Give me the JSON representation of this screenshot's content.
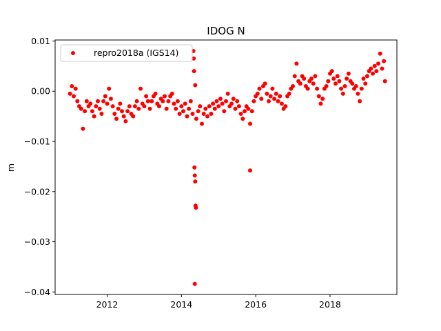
{
  "chart_data": {
    "type": "scatter",
    "title": "IDOG N",
    "xlabel": "",
    "ylabel": "m",
    "xlim": [
      2010.6,
      2019.8
    ],
    "ylim": [
      -0.0405,
      0.0102
    ],
    "xticks": [
      2012,
      2014,
      2016,
      2018
    ],
    "xtick_labels": [
      "2012",
      "2014",
      "2016",
      "2018"
    ],
    "yticks": [
      0.01,
      0.0,
      -0.01,
      -0.02,
      -0.03,
      -0.04
    ],
    "ytick_labels": [
      "0.01",
      "0.00",
      "−0.01",
      "−0.02",
      "−0.03",
      "−0.04"
    ],
    "legend": {
      "position": "top-left"
    },
    "series": [
      {
        "name": "repro2018a (IGS14)",
        "color": "#ff0000",
        "marker": "circle",
        "points": [
          [
            2011.0,
            -0.0005
          ],
          [
            2011.05,
            0.001
          ],
          [
            2011.1,
            -0.001
          ],
          [
            2011.15,
            0.0005
          ],
          [
            2011.2,
            -0.002
          ],
          [
            2011.25,
            -0.003
          ],
          [
            2011.3,
            -0.0035
          ],
          [
            2011.35,
            -0.0075
          ],
          [
            2011.4,
            -0.004
          ],
          [
            2011.45,
            -0.002
          ],
          [
            2011.5,
            -0.003
          ],
          [
            2011.55,
            -0.0025
          ],
          [
            2011.6,
            -0.004
          ],
          [
            2011.65,
            -0.005
          ],
          [
            2011.7,
            -0.003
          ],
          [
            2011.75,
            -0.002
          ],
          [
            2011.8,
            -0.0035
          ],
          [
            2011.85,
            -0.0045
          ],
          [
            2011.9,
            -0.002
          ],
          [
            2011.95,
            -0.001
          ],
          [
            2012.0,
            -0.0025
          ],
          [
            2012.05,
            0.0005
          ],
          [
            2012.1,
            -0.0015
          ],
          [
            2012.15,
            -0.003
          ],
          [
            2012.2,
            -0.0045
          ],
          [
            2012.25,
            -0.0055
          ],
          [
            2012.3,
            -0.0035
          ],
          [
            2012.35,
            -0.0025
          ],
          [
            2012.4,
            -0.004
          ],
          [
            2012.45,
            -0.005
          ],
          [
            2012.5,
            -0.006
          ],
          [
            2012.55,
            -0.004
          ],
          [
            2012.6,
            -0.003
          ],
          [
            2012.65,
            -0.0045
          ],
          [
            2012.7,
            -0.005
          ],
          [
            2012.75,
            -0.003
          ],
          [
            2012.8,
            -0.002
          ],
          [
            2012.85,
            -0.0035
          ],
          [
            2012.9,
            0.0005
          ],
          [
            2012.95,
            -0.0025
          ],
          [
            2013.0,
            -0.003
          ],
          [
            2013.05,
            -0.001
          ],
          [
            2013.1,
            -0.002
          ],
          [
            2013.15,
            -0.0035
          ],
          [
            2013.2,
            -0.002
          ],
          [
            2013.25,
            -0.001
          ],
          [
            2013.3,
            -0.0005
          ],
          [
            2013.35,
            -0.0025
          ],
          [
            2013.4,
            -0.003
          ],
          [
            2013.45,
            -0.0015
          ],
          [
            2013.5,
            -0.002
          ],
          [
            2013.55,
            -0.001
          ],
          [
            2013.6,
            -0.0035
          ],
          [
            2013.65,
            -0.002
          ],
          [
            2013.7,
            -0.001
          ],
          [
            2013.75,
            -0.0005
          ],
          [
            2013.8,
            -0.0025
          ],
          [
            2013.85,
            -0.0035
          ],
          [
            2013.9,
            -0.002
          ],
          [
            2013.95,
            -0.0045
          ],
          [
            2014.0,
            -0.003
          ],
          [
            2014.05,
            -0.004
          ],
          [
            2014.1,
            -0.0025
          ],
          [
            2014.15,
            -0.005
          ],
          [
            2014.2,
            -0.0035
          ],
          [
            2014.25,
            -0.002
          ],
          [
            2014.3,
            -0.0045
          ],
          [
            2014.32,
            0.008
          ],
          [
            2014.33,
            0.0065
          ],
          [
            2014.34,
            0.004
          ],
          [
            2014.35,
            -0.0152
          ],
          [
            2014.36,
            -0.0168
          ],
          [
            2014.37,
            -0.018
          ],
          [
            2014.38,
            -0.0228
          ],
          [
            2014.39,
            -0.0232
          ],
          [
            2014.36,
            -0.0384
          ],
          [
            2014.37,
            0.0012
          ],
          [
            2014.4,
            -0.0055
          ],
          [
            2014.45,
            -0.004
          ],
          [
            2014.5,
            -0.003
          ],
          [
            2014.55,
            -0.0065
          ],
          [
            2014.6,
            -0.0045
          ],
          [
            2014.65,
            -0.0035
          ],
          [
            2014.7,
            -0.005
          ],
          [
            2014.75,
            -0.003
          ],
          [
            2014.8,
            -0.0045
          ],
          [
            2014.85,
            -0.0025
          ],
          [
            2014.9,
            -0.0035
          ],
          [
            2014.95,
            -0.002
          ],
          [
            2015.0,
            -0.003
          ],
          [
            2015.05,
            -0.0015
          ],
          [
            2015.1,
            -0.0025
          ],
          [
            2015.15,
            -0.004
          ],
          [
            2015.2,
            -0.002
          ],
          [
            2015.25,
            -0.0005
          ],
          [
            2015.3,
            -0.003
          ],
          [
            2015.35,
            -0.0025
          ],
          [
            2015.4,
            -0.0015
          ],
          [
            2015.45,
            -0.0035
          ],
          [
            2015.5,
            -0.002
          ],
          [
            2015.55,
            -0.003
          ],
          [
            2015.6,
            -0.0045
          ],
          [
            2015.65,
            -0.0055
          ],
          [
            2015.7,
            -0.004
          ],
          [
            2015.75,
            -0.003
          ],
          [
            2015.8,
            -0.0035
          ],
          [
            2015.85,
            -0.0158
          ],
          [
            2015.85,
            -0.0065
          ],
          [
            2015.9,
            -0.004
          ],
          [
            2015.95,
            -0.002
          ],
          [
            2016.0,
            -0.001
          ],
          [
            2016.05,
            -0.0005
          ],
          [
            2016.1,
            0.0005
          ],
          [
            2016.15,
            -0.0015
          ],
          [
            2016.2,
            0.001
          ],
          [
            2016.25,
            0.0015
          ],
          [
            2016.3,
            -0.0005
          ],
          [
            2016.35,
            -0.002
          ],
          [
            2016.4,
            -0.001
          ],
          [
            2016.45,
            0.0005
          ],
          [
            2016.5,
            -0.0015
          ],
          [
            2016.55,
            -0.0005
          ],
          [
            2016.6,
            -0.002
          ],
          [
            2016.65,
            -0.001
          ],
          [
            2016.7,
            -0.0025
          ],
          [
            2016.75,
            -0.0035
          ],
          [
            2016.8,
            -0.003
          ],
          [
            2016.85,
            -0.001
          ],
          [
            2016.9,
            -0.0005
          ],
          [
            2016.95,
            0.0005
          ],
          [
            2017.0,
            0.001
          ],
          [
            2017.05,
            0.003
          ],
          [
            2017.1,
            0.0055
          ],
          [
            2017.15,
            0.002
          ],
          [
            2017.2,
            0.0015
          ],
          [
            2017.25,
            0.003
          ],
          [
            2017.3,
            0.0025
          ],
          [
            2017.35,
            0.001
          ],
          [
            2017.4,
            0.0005
          ],
          [
            2017.45,
            0.002
          ],
          [
            2017.5,
            0.0025
          ],
          [
            2017.55,
            0.0015
          ],
          [
            2017.6,
            0.003
          ],
          [
            2017.65,
            0.0005
          ],
          [
            2017.7,
            -0.001
          ],
          [
            2017.75,
            -0.0025
          ],
          [
            2017.8,
            -0.0015
          ],
          [
            2017.85,
            0.0005
          ],
          [
            2017.9,
            0.001
          ],
          [
            2017.95,
            0.002
          ],
          [
            2018.0,
            0.0035
          ],
          [
            2018.05,
            0.004
          ],
          [
            2018.1,
            0.0025
          ],
          [
            2018.15,
            0.0015
          ],
          [
            2018.2,
            0.003
          ],
          [
            2018.25,
            0.002
          ],
          [
            2018.3,
            0.0005
          ],
          [
            2018.35,
            -0.0005
          ],
          [
            2018.4,
            0.001
          ],
          [
            2018.45,
            0.0025
          ],
          [
            2018.5,
            0.0035
          ],
          [
            2018.55,
            0.002
          ],
          [
            2018.6,
            0.0015
          ],
          [
            2018.65,
            0.0005
          ],
          [
            2018.7,
            0.001
          ],
          [
            2018.75,
            -0.0005
          ],
          [
            2018.8,
            -0.002
          ],
          [
            2018.85,
            0.0005
          ],
          [
            2018.9,
            0.0025
          ],
          [
            2018.95,
            0.0015
          ],
          [
            2019.0,
            0.003
          ],
          [
            2019.05,
            0.004
          ],
          [
            2019.1,
            0.0045
          ],
          [
            2019.15,
            0.0035
          ],
          [
            2019.2,
            0.005
          ],
          [
            2019.25,
            0.004
          ],
          [
            2019.3,
            0.0055
          ],
          [
            2019.35,
            0.0075
          ],
          [
            2019.4,
            0.0045
          ],
          [
            2019.45,
            0.006
          ],
          [
            2019.48,
            0.002
          ]
        ]
      }
    ]
  }
}
